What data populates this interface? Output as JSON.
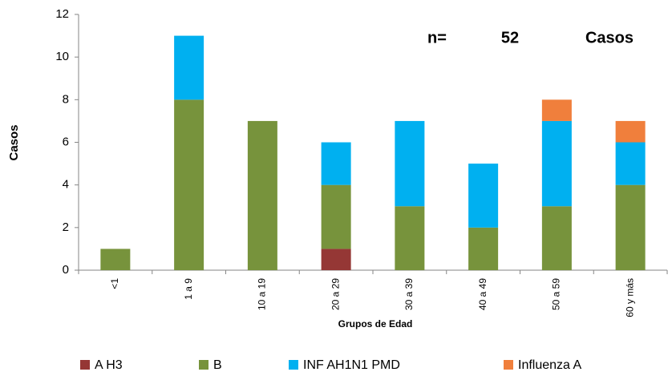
{
  "chart_data": {
    "type": "stacked-bar",
    "categories": [
      "<1",
      "1 a 9",
      "10 a 19",
      "20 a 29",
      "30 a 39",
      "40 a 49",
      "50 a 59",
      "60 y más"
    ],
    "series": [
      {
        "name": "A H3",
        "color": "#953735",
        "values": [
          0,
          0,
          0,
          1,
          0,
          0,
          0,
          0
        ]
      },
      {
        "name": "B",
        "color": "#77933c",
        "values": [
          1,
          8,
          7,
          3,
          3,
          2,
          3,
          4
        ]
      },
      {
        "name": "INF AH1N1 PMD",
        "color": "#00b0f0",
        "values": [
          0,
          3,
          0,
          2,
          4,
          3,
          4,
          2
        ]
      },
      {
        "name": "Influenza A",
        "color": "#f07f3c",
        "values": [
          0,
          0,
          0,
          0,
          0,
          0,
          1,
          1
        ]
      }
    ],
    "ylim": [
      0,
      12
    ],
    "yticks": [
      0,
      2,
      4,
      6,
      8,
      10,
      12
    ],
    "y_label": "Casos",
    "x_label": "Grupos de Edad",
    "annotation": [
      "n=",
      "52",
      "Casos"
    ]
  }
}
